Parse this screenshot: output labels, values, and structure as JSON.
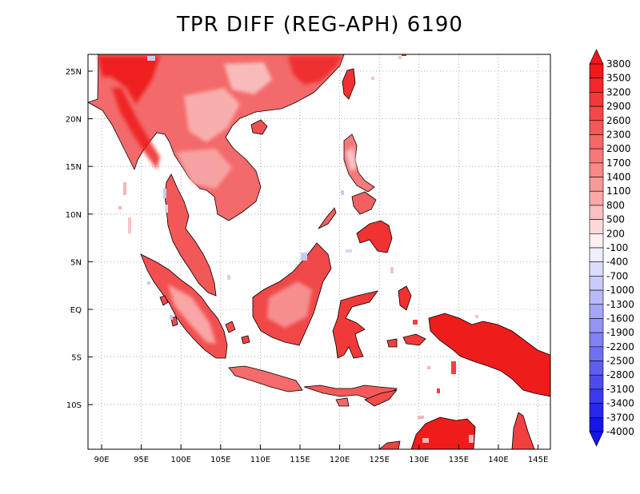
{
  "title": "TPR DIFF (REG-APH) 6190",
  "map": {
    "lon_ticks": [
      "90E",
      "95E",
      "100E",
      "105E",
      "110E",
      "115E",
      "120E",
      "125E",
      "130E",
      "135E",
      "140E",
      "145E"
    ],
    "lat_ticks": [
      "25N",
      "20N",
      "15N",
      "10N",
      "5N",
      "EQ",
      "5S",
      "10S"
    ],
    "grid": true,
    "fill_color": "#ef1c1c"
  },
  "colorbar": {
    "labels": [
      "3800",
      "3500",
      "3200",
      "2900",
      "2600",
      "2300",
      "2000",
      "1700",
      "1400",
      "1100",
      "800",
      "500",
      "200",
      "-100",
      "-400",
      "-700",
      "-1000",
      "-1300",
      "-1600",
      "-1900",
      "-2200",
      "-2500",
      "-2800",
      "-3100",
      "-3400",
      "-3700",
      "-4000"
    ],
    "colors": [
      "#f01818",
      "#f22828",
      "#f33838",
      "#f44848",
      "#f55858",
      "#f66868",
      "#f77878",
      "#f88888",
      "#f99898",
      "#faa8a8",
      "#fbc0c0",
      "#fdd8d8",
      "#fef0f0",
      "#eeeeff",
      "#dcdcfe",
      "#cacafc",
      "#b8b8fa",
      "#a6a6f8",
      "#9494f6",
      "#8282f4",
      "#7070f2",
      "#5e5ef0",
      "#4c4cee",
      "#3a3aec",
      "#2828ea",
      "#1616e8"
    ]
  }
}
